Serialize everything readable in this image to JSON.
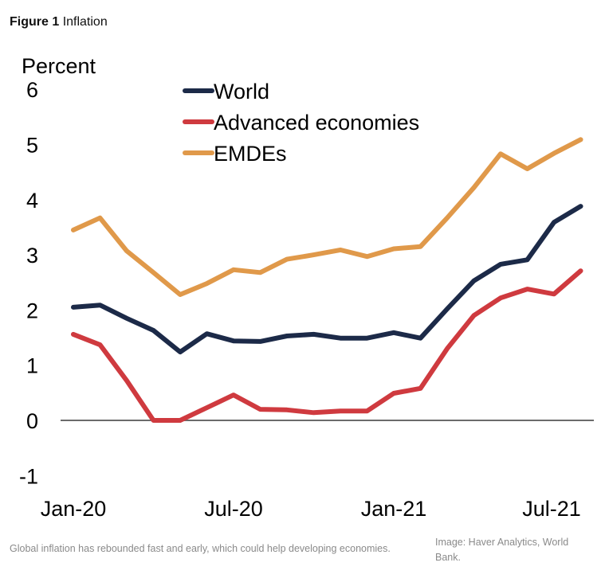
{
  "figure": {
    "label": "Figure 1",
    "title": "Inflation"
  },
  "caption": "Global inflation has rebounded fast and early, which could help developing economies.",
  "credit": "Image: Haver Analytics, World Bank.",
  "chart_data": {
    "type": "line",
    "title": "Inflation",
    "ylabel": "Percent",
    "xlabel": "",
    "ylim": [
      -1,
      6
    ],
    "yticks": [
      6,
      5,
      4,
      3,
      2,
      1,
      0,
      -1
    ],
    "x": [
      "Jan-20",
      "Feb-20",
      "Mar-20",
      "Apr-20",
      "May-20",
      "Jun-20",
      "Jul-20",
      "Aug-20",
      "Sep-20",
      "Oct-20",
      "Nov-20",
      "Dec-20",
      "Jan-21",
      "Feb-21",
      "Mar-21",
      "Apr-21",
      "May-21",
      "Jun-21",
      "Jul-21",
      "Aug-21"
    ],
    "xtick_labels": [
      "Jan-20",
      "Jul-20",
      "Jan-21",
      "Jul-21"
    ],
    "xtick_indices": [
      0,
      6,
      12,
      18
    ],
    "zero_line": true,
    "grid": false,
    "legend_position": "top-center",
    "series": [
      {
        "name": "World",
        "color": "#1c2a48",
        "values": [
          2.05,
          2.09,
          1.85,
          1.63,
          1.24,
          1.57,
          1.44,
          1.43,
          1.53,
          1.56,
          1.49,
          1.49,
          1.59,
          1.49,
          2.02,
          2.53,
          2.83,
          2.91,
          3.59,
          3.88
        ]
      },
      {
        "name": "Advanced economies",
        "color": "#cf3a3f",
        "values": [
          1.56,
          1.37,
          0.72,
          0.0,
          0.0,
          0.23,
          0.46,
          0.2,
          0.19,
          0.14,
          0.17,
          0.17,
          0.49,
          0.58,
          1.3,
          1.9,
          2.22,
          2.38,
          2.29,
          2.71
        ]
      },
      {
        "name": "EMDEs",
        "color": "#e0994a",
        "values": [
          3.45,
          3.67,
          3.07,
          2.68,
          2.28,
          2.48,
          2.73,
          2.68,
          2.92,
          3.0,
          3.09,
          2.97,
          3.11,
          3.15,
          3.67,
          4.22,
          4.83,
          4.56,
          4.84,
          5.09
        ]
      }
    ]
  }
}
